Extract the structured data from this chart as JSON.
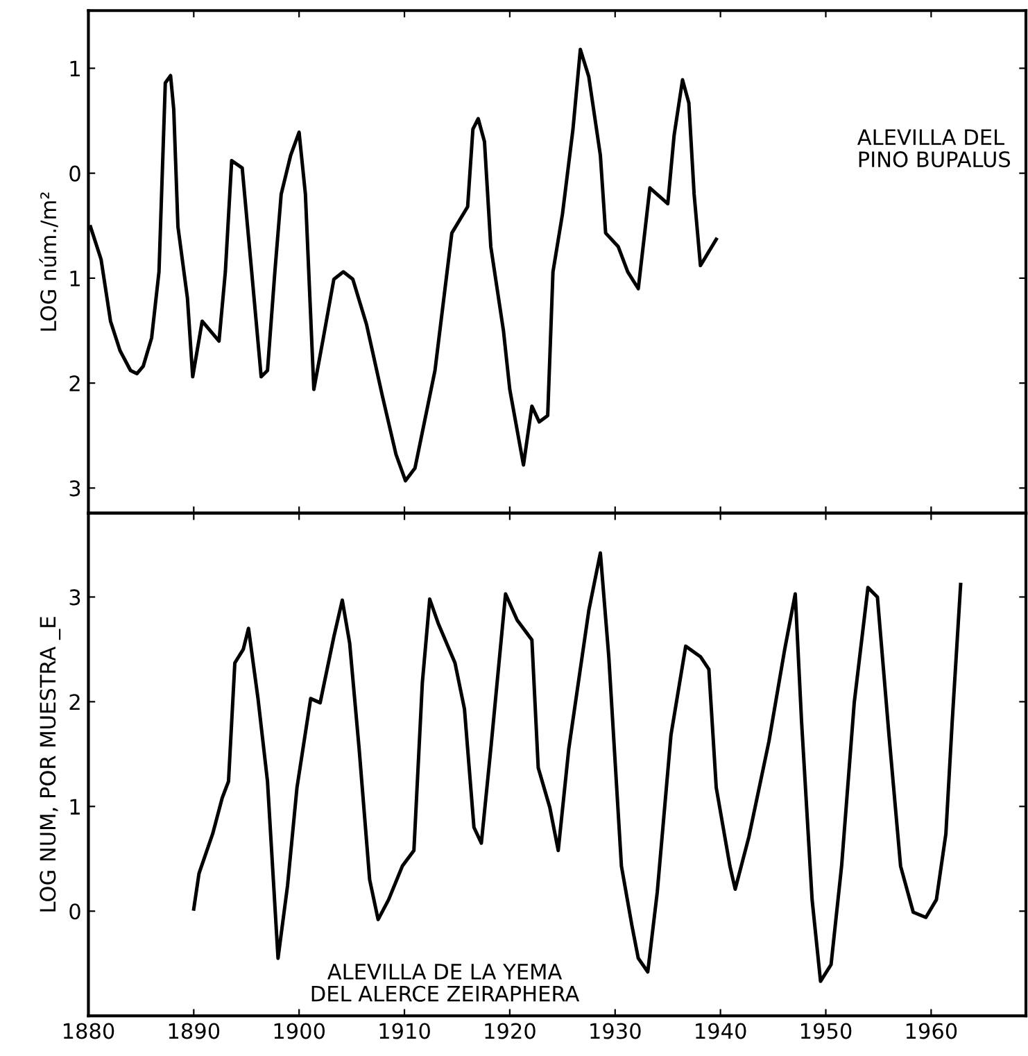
{
  "chart_data": [
    {
      "type": "line",
      "ylabel": "LOG núm./m²",
      "xlim": [
        1880,
        1969
      ],
      "xticks": [
        1880,
        1890,
        1900,
        1910,
        1920,
        1930,
        1940,
        1950,
        1960
      ],
      "ylim": [
        -3.24,
        1.55
      ],
      "yticks": [
        1,
        0,
        {
          "value": -1,
          "label": "1"
        },
        {
          "value": -2,
          "label": "2"
        },
        {
          "value": -3,
          "label": "3"
        }
      ],
      "tick_labels": "y",
      "grid": false,
      "legend": false,
      "series": [
        {
          "name": "ALEVILLA DEL\nPINO BUPALUS",
          "color": "#000000",
          "x": [
            1880.2,
            1881.2,
            1882.1,
            1883.0,
            1884.0,
            1884.6,
            1885.2,
            1886.0,
            1886.7,
            1887.3,
            1887.8,
            1888.1,
            1888.5,
            1889.4,
            1889.9,
            1890.8,
            1892.4,
            1893.0,
            1893.6,
            1894.6,
            1895.5,
            1896.4,
            1897.0,
            1897.7,
            1898.3,
            1899.2,
            1900.0,
            1900.6,
            1901.4,
            1902.3,
            1903.3,
            1904.2,
            1905.1,
            1906.4,
            1907.9,
            1909.2,
            1910.1,
            1911.0,
            1912.9,
            1914.5,
            1916.0,
            1916.5,
            1917.0,
            1917.6,
            1918.2,
            1919.4,
            1920.0,
            1921.3,
            1922.1,
            1922.8,
            1923.6,
            1924.1,
            1925.0,
            1926.0,
            1926.7,
            1927.5,
            1928.6,
            1929.1,
            1930.3,
            1931.2,
            1932.2,
            1933.3,
            1935.0,
            1935.6,
            1936.4,
            1937.0,
            1937.5,
            1938.1,
            1939.6
          ],
          "values": [
            -0.51,
            -0.82,
            -1.41,
            -1.69,
            -1.88,
            -1.91,
            -1.84,
            -1.57,
            -0.94,
            0.86,
            0.93,
            0.61,
            -0.51,
            -1.19,
            -1.94,
            -1.41,
            -1.6,
            -0.94,
            0.12,
            0.05,
            -0.94,
            -1.94,
            -1.88,
            -0.94,
            -0.2,
            0.17,
            0.39,
            -0.2,
            -2.06,
            -1.57,
            -1.01,
            -0.94,
            -1.01,
            -1.44,
            -2.12,
            -2.68,
            -2.93,
            -2.81,
            -1.88,
            -0.57,
            -0.32,
            0.42,
            0.52,
            0.3,
            -0.7,
            -1.5,
            -2.06,
            -2.78,
            -2.22,
            -2.37,
            -2.31,
            -0.94,
            -0.39,
            0.42,
            1.18,
            0.92,
            0.17,
            -0.57,
            -0.7,
            -0.94,
            -1.1,
            -0.14,
            -0.29,
            0.36,
            0.89,
            0.67,
            -0.2,
            -0.88,
            -0.63
          ]
        }
      ]
    },
    {
      "type": "line",
      "ylabel": "LOG NUM, POR MUESTRA _E",
      "xlim": [
        1880,
        1969
      ],
      "xticks": [
        1880,
        1890,
        1900,
        1910,
        1920,
        1930,
        1940,
        1950,
        1960
      ],
      "ylim": [
        -1.0,
        3.8
      ],
      "yticks": [
        0,
        1,
        2,
        3
      ],
      "grid": false,
      "legend": false,
      "series": [
        {
          "name": "ALEVILLA DE LA YEMA\nDEL ALERCE ZEIRAPHERA",
          "color": "#000000",
          "x": [
            1890.0,
            1890.5,
            1891.8,
            1892.7,
            1893.3,
            1893.9,
            1894.7,
            1895.2,
            1896.1,
            1897.0,
            1898.0,
            1898.9,
            1899.8,
            1901.1,
            1902.0,
            1903.3,
            1904.1,
            1904.8,
            1905.7,
            1906.7,
            1907.5,
            1908.5,
            1909.8,
            1910.9,
            1911.7,
            1912.4,
            1913.2,
            1914.8,
            1915.7,
            1916.6,
            1917.3,
            1918.2,
            1919.6,
            1920.7,
            1922.1,
            1922.7,
            1923.8,
            1924.6,
            1925.6,
            1927.5,
            1928.6,
            1929.4,
            1930.6,
            1931.6,
            1932.2,
            1933.1,
            1934.0,
            1935.3,
            1936.7,
            1938.1,
            1938.9,
            1939.6,
            1940.9,
            1941.4,
            1942.7,
            1944.6,
            1946.1,
            1947.1,
            1947.7,
            1948.7,
            1949.5,
            1950.5,
            1951.5,
            1952.7,
            1954.0,
            1954.9,
            1956.0,
            1957.1,
            1958.3,
            1959.5,
            1960.5,
            1961.4,
            1962.0,
            1962.8
          ],
          "values": [
            0.02,
            0.36,
            0.74,
            1.08,
            1.24,
            2.37,
            2.5,
            2.7,
            2.03,
            1.24,
            -0.45,
            0.24,
            1.18,
            2.03,
            1.99,
            2.62,
            2.97,
            2.56,
            1.55,
            0.3,
            -0.08,
            0.11,
            0.43,
            0.58,
            2.18,
            2.98,
            2.75,
            2.37,
            1.93,
            0.8,
            0.65,
            1.55,
            3.03,
            2.78,
            2.59,
            1.37,
            0.99,
            0.58,
            1.55,
            2.87,
            3.42,
            2.43,
            0.43,
            -0.14,
            -0.45,
            -0.58,
            0.18,
            1.68,
            2.53,
            2.43,
            2.31,
            1.18,
            0.43,
            0.21,
            0.71,
            1.62,
            2.5,
            3.03,
            1.81,
            0.11,
            -0.67,
            -0.51,
            0.43,
            1.99,
            3.09,
            3.0,
            1.68,
            0.43,
            -0.01,
            -0.06,
            0.11,
            0.74,
            1.81,
            3.12
          ]
        }
      ]
    }
  ]
}
